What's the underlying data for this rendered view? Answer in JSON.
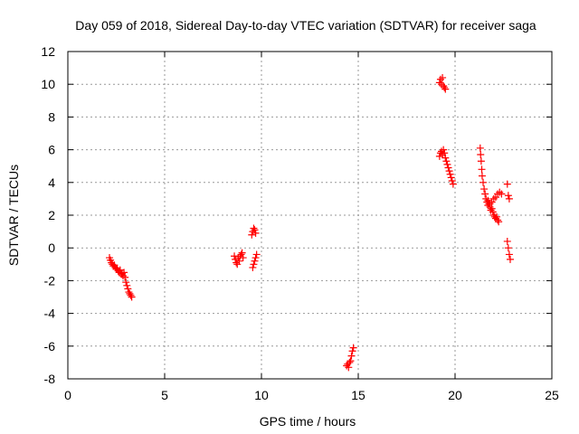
{
  "chart_data": {
    "type": "scatter",
    "title": "Day 059 of 2018, Sidereal Day-to-day VTEC variation (SDTVAR) for receiver saga",
    "xlabel": "GPS time / hours",
    "ylabel": "SDTVAR / TECUs",
    "xlim": [
      0,
      25
    ],
    "ylim": [
      -8,
      12
    ],
    "xticks": [
      0,
      5,
      10,
      15,
      20,
      25
    ],
    "yticks": [
      -8,
      -6,
      -4,
      -2,
      0,
      2,
      4,
      6,
      8,
      10,
      12
    ],
    "grid": true,
    "marker": "+",
    "color": "#ff0000",
    "series": [
      {
        "name": "SDTVAR",
        "points": [
          [
            2.15,
            -0.6
          ],
          [
            2.2,
            -0.75
          ],
          [
            2.25,
            -0.9
          ],
          [
            2.3,
            -1.0
          ],
          [
            2.35,
            -1.1
          ],
          [
            2.4,
            -1.05
          ],
          [
            2.45,
            -1.2
          ],
          [
            2.5,
            -1.3
          ],
          [
            2.55,
            -1.25
          ],
          [
            2.6,
            -1.4
          ],
          [
            2.65,
            -1.5
          ],
          [
            2.7,
            -1.35
          ],
          [
            2.75,
            -1.6
          ],
          [
            2.8,
            -1.55
          ],
          [
            2.85,
            -1.7
          ],
          [
            2.9,
            -1.5
          ],
          [
            2.95,
            -1.8
          ],
          [
            3.0,
            -2.1
          ],
          [
            3.05,
            -2.3
          ],
          [
            3.1,
            -2.5
          ],
          [
            3.15,
            -2.7
          ],
          [
            3.2,
            -2.8
          ],
          [
            3.25,
            -2.9
          ],
          [
            3.3,
            -3.0
          ],
          [
            8.6,
            -0.5
          ],
          [
            8.65,
            -0.7
          ],
          [
            8.7,
            -0.9
          ],
          [
            8.75,
            -1.0
          ],
          [
            8.8,
            -0.6
          ],
          [
            8.85,
            -0.8
          ],
          [
            8.9,
            -0.5
          ],
          [
            8.95,
            -0.4
          ],
          [
            9.0,
            -0.3
          ],
          [
            9.05,
            -0.6
          ],
          [
            9.5,
            0.8
          ],
          [
            9.55,
            1.0
          ],
          [
            9.6,
            1.2
          ],
          [
            9.65,
            1.1
          ],
          [
            9.7,
            0.9
          ],
          [
            9.55,
            -1.2
          ],
          [
            9.6,
            -1.0
          ],
          [
            9.65,
            -0.8
          ],
          [
            9.7,
            -0.6
          ],
          [
            9.75,
            -0.4
          ],
          [
            14.4,
            -7.2
          ],
          [
            14.45,
            -7.1
          ],
          [
            14.5,
            -7.3
          ],
          [
            14.55,
            -7.0
          ],
          [
            14.6,
            -6.9
          ],
          [
            14.65,
            -6.6
          ],
          [
            14.7,
            -6.3
          ],
          [
            14.75,
            -6.1
          ],
          [
            19.2,
            10.1
          ],
          [
            19.25,
            10.3
          ],
          [
            19.3,
            10.0
          ],
          [
            19.35,
            10.4
          ],
          [
            19.4,
            9.9
          ],
          [
            19.45,
            9.8
          ],
          [
            19.5,
            9.7
          ],
          [
            19.2,
            5.6
          ],
          [
            19.25,
            5.8
          ],
          [
            19.3,
            5.9
          ],
          [
            19.35,
            5.7
          ],
          [
            19.4,
            6.0
          ],
          [
            19.45,
            5.8
          ],
          [
            19.5,
            5.5
          ],
          [
            19.55,
            5.3
          ],
          [
            19.6,
            5.1
          ],
          [
            19.65,
            4.9
          ],
          [
            19.7,
            4.7
          ],
          [
            19.75,
            4.5
          ],
          [
            19.8,
            4.3
          ],
          [
            19.85,
            4.1
          ],
          [
            19.9,
            3.9
          ],
          [
            21.3,
            6.1
          ],
          [
            21.32,
            5.7
          ],
          [
            21.35,
            5.3
          ],
          [
            21.38,
            4.8
          ],
          [
            21.4,
            4.4
          ],
          [
            21.45,
            4.0
          ],
          [
            21.5,
            3.6
          ],
          [
            21.55,
            3.3
          ],
          [
            21.6,
            3.0
          ],
          [
            21.65,
            2.8
          ],
          [
            21.7,
            2.6
          ],
          [
            21.75,
            2.7
          ],
          [
            21.8,
            2.5
          ],
          [
            21.85,
            2.3
          ],
          [
            21.9,
            2.4
          ],
          [
            21.95,
            2.2
          ],
          [
            22.0,
            2.0
          ],
          [
            22.05,
            1.9
          ],
          [
            22.1,
            1.8
          ],
          [
            22.15,
            1.9
          ],
          [
            22.2,
            1.7
          ],
          [
            22.25,
            1.6
          ],
          [
            21.7,
            2.9
          ],
          [
            21.8,
            2.7
          ],
          [
            21.9,
            2.8
          ],
          [
            22.0,
            3.0
          ],
          [
            22.1,
            3.1
          ],
          [
            22.2,
            3.3
          ],
          [
            22.3,
            3.4
          ],
          [
            22.4,
            3.3
          ],
          [
            22.7,
            3.9
          ],
          [
            22.75,
            3.2
          ],
          [
            22.8,
            3.0
          ],
          [
            22.7,
            0.4
          ],
          [
            22.75,
            0.0
          ],
          [
            22.8,
            -0.4
          ],
          [
            22.85,
            -0.7
          ]
        ]
      }
    ]
  }
}
